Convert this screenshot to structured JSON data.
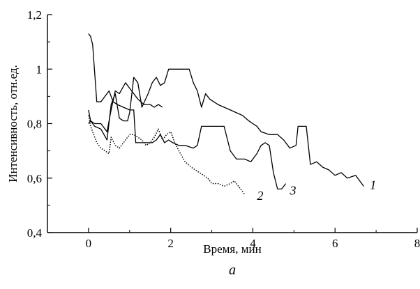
{
  "chart_data": {
    "type": "line",
    "xlabel": "Время, мин",
    "ylabel": "Интенсивность, отн.ед.",
    "xlim": [
      -1,
      8
    ],
    "ylim": [
      0.4,
      1.2
    ],
    "x_ticks": [
      0,
      2,
      4,
      6,
      8
    ],
    "x_tick_labels": [
      "0",
      "2",
      "4",
      "6",
      "8"
    ],
    "y_ticks": [
      0.4,
      0.6,
      0.8,
      1.0,
      1.2
    ],
    "y_tick_labels": [
      "0,4",
      "0,6",
      "0,8",
      "1",
      "1,2"
    ],
    "grid": false,
    "panel_label": "а",
    "series": [
      {
        "name": "1",
        "style": "solid",
        "label_at": [
          6.85,
          0.575
        ],
        "points": [
          [
            0.0,
            0.8
          ],
          [
            0.05,
            0.81
          ],
          [
            0.15,
            0.79
          ],
          [
            0.3,
            0.78
          ],
          [
            0.45,
            0.74
          ],
          [
            0.55,
            0.87
          ],
          [
            0.65,
            0.91
          ],
          [
            0.75,
            0.82
          ],
          [
            0.85,
            0.81
          ],
          [
            0.95,
            0.81
          ],
          [
            1.0,
            0.84
          ],
          [
            1.1,
            0.97
          ],
          [
            1.2,
            0.95
          ],
          [
            1.3,
            0.86
          ],
          [
            1.45,
            0.91
          ],
          [
            1.55,
            0.95
          ],
          [
            1.65,
            0.97
          ],
          [
            1.75,
            0.94
          ],
          [
            1.85,
            0.95
          ],
          [
            1.95,
            1.0
          ],
          [
            2.1,
            1.0
          ],
          [
            2.3,
            1.0
          ],
          [
            2.45,
            1.0
          ],
          [
            2.55,
            0.95
          ],
          [
            2.65,
            0.92
          ],
          [
            2.75,
            0.86
          ],
          [
            2.85,
            0.91
          ],
          [
            2.95,
            0.89
          ],
          [
            3.05,
            0.88
          ],
          [
            3.15,
            0.87
          ],
          [
            3.3,
            0.86
          ],
          [
            3.45,
            0.85
          ],
          [
            3.6,
            0.84
          ],
          [
            3.75,
            0.83
          ],
          [
            3.9,
            0.81
          ],
          [
            4.0,
            0.8
          ],
          [
            4.1,
            0.79
          ],
          [
            4.2,
            0.77
          ],
          [
            4.4,
            0.76
          ],
          [
            4.6,
            0.76
          ],
          [
            4.75,
            0.74
          ],
          [
            4.9,
            0.71
          ],
          [
            5.05,
            0.72
          ],
          [
            5.1,
            0.79
          ],
          [
            5.3,
            0.79
          ],
          [
            5.4,
            0.65
          ],
          [
            5.55,
            0.66
          ],
          [
            5.7,
            0.64
          ],
          [
            5.85,
            0.63
          ],
          [
            6.0,
            0.61
          ],
          [
            6.15,
            0.62
          ],
          [
            6.3,
            0.6
          ],
          [
            6.5,
            0.61
          ],
          [
            6.7,
            0.57
          ]
        ]
      },
      {
        "name": "2",
        "style": "dotted",
        "label_at": [
          4.1,
          0.535
        ],
        "points": [
          [
            0.0,
            0.83
          ],
          [
            0.05,
            0.79
          ],
          [
            0.1,
            0.77
          ],
          [
            0.2,
            0.73
          ],
          [
            0.3,
            0.71
          ],
          [
            0.4,
            0.7
          ],
          [
            0.5,
            0.69
          ],
          [
            0.55,
            0.75
          ],
          [
            0.65,
            0.72
          ],
          [
            0.75,
            0.71
          ],
          [
            0.9,
            0.74
          ],
          [
            1.0,
            0.76
          ],
          [
            1.1,
            0.76
          ],
          [
            1.2,
            0.75
          ],
          [
            1.3,
            0.74
          ],
          [
            1.4,
            0.72
          ],
          [
            1.5,
            0.73
          ],
          [
            1.6,
            0.75
          ],
          [
            1.7,
            0.78
          ],
          [
            1.8,
            0.74
          ],
          [
            1.9,
            0.76
          ],
          [
            2.0,
            0.77
          ],
          [
            2.1,
            0.73
          ],
          [
            2.2,
            0.7
          ],
          [
            2.35,
            0.66
          ],
          [
            2.5,
            0.64
          ],
          [
            2.6,
            0.63
          ],
          [
            2.7,
            0.62
          ],
          [
            2.8,
            0.61
          ],
          [
            2.9,
            0.6
          ],
          [
            3.0,
            0.58
          ],
          [
            3.15,
            0.58
          ],
          [
            3.3,
            0.57
          ],
          [
            3.45,
            0.58
          ],
          [
            3.55,
            0.59
          ],
          [
            3.65,
            0.57
          ],
          [
            3.8,
            0.54
          ]
        ]
      },
      {
        "name": "3",
        "style": "solid",
        "label_at": [
          4.9,
          0.555
        ],
        "points": [
          [
            0.0,
            1.13
          ],
          [
            0.05,
            1.12
          ],
          [
            0.1,
            1.09
          ],
          [
            0.2,
            0.88
          ],
          [
            0.3,
            0.88
          ],
          [
            0.4,
            0.9
          ],
          [
            0.5,
            0.92
          ],
          [
            0.6,
            0.88
          ],
          [
            0.7,
            0.87
          ],
          [
            0.85,
            0.86
          ],
          [
            1.0,
            0.85
          ],
          [
            1.1,
            0.85
          ],
          [
            1.15,
            0.73
          ],
          [
            1.3,
            0.73
          ],
          [
            1.45,
            0.73
          ],
          [
            1.55,
            0.73
          ],
          [
            1.65,
            0.74
          ],
          [
            1.75,
            0.76
          ],
          [
            1.85,
            0.73
          ],
          [
            1.95,
            0.74
          ],
          [
            2.05,
            0.73
          ],
          [
            2.2,
            0.72
          ],
          [
            2.35,
            0.72
          ],
          [
            2.55,
            0.71
          ],
          [
            2.65,
            0.72
          ],
          [
            2.75,
            0.79
          ],
          [
            2.9,
            0.79
          ],
          [
            3.1,
            0.79
          ],
          [
            3.3,
            0.79
          ],
          [
            3.45,
            0.7
          ],
          [
            3.6,
            0.67
          ],
          [
            3.8,
            0.67
          ],
          [
            3.95,
            0.66
          ],
          [
            4.1,
            0.69
          ],
          [
            4.2,
            0.72
          ],
          [
            4.3,
            0.73
          ],
          [
            4.4,
            0.72
          ],
          [
            4.5,
            0.62
          ],
          [
            4.6,
            0.56
          ],
          [
            4.7,
            0.56
          ],
          [
            4.8,
            0.58
          ]
        ]
      },
      {
        "name": "",
        "style": "solid",
        "points": [
          [
            0.0,
            0.85
          ],
          [
            0.05,
            0.81
          ],
          [
            0.15,
            0.8
          ],
          [
            0.3,
            0.8
          ],
          [
            0.45,
            0.77
          ],
          [
            0.55,
            0.85
          ],
          [
            0.65,
            0.92
          ],
          [
            0.75,
            0.91
          ],
          [
            0.9,
            0.95
          ],
          [
            1.05,
            0.92
          ],
          [
            1.2,
            0.89
          ],
          [
            1.35,
            0.87
          ],
          [
            1.5,
            0.87
          ],
          [
            1.6,
            0.86
          ],
          [
            1.7,
            0.87
          ],
          [
            1.8,
            0.86
          ]
        ]
      }
    ]
  }
}
